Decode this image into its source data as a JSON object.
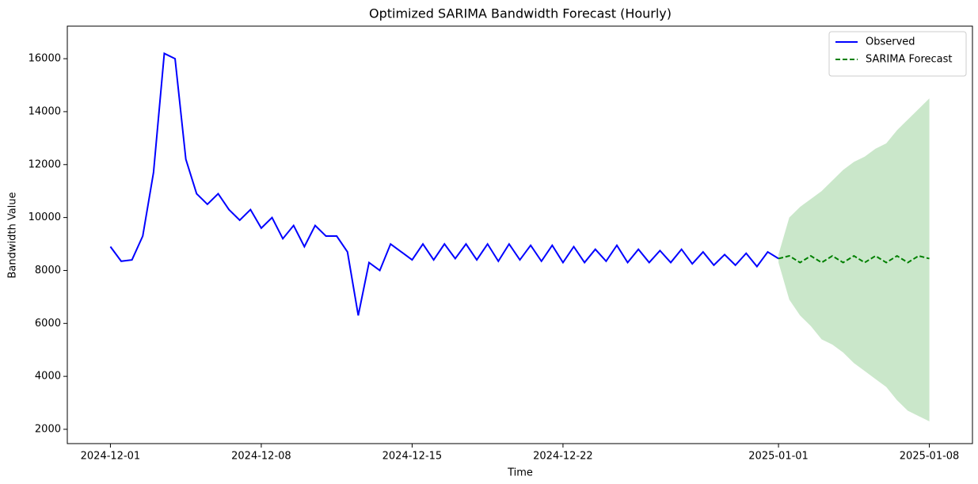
{
  "chart_data": {
    "type": "line",
    "title": "Optimized SARIMA Bandwidth Forecast (Hourly)",
    "x_label": "Time",
    "y_label": "Bandwidth Value",
    "xlim": [
      "2024-11-29 00:00",
      "2025-01-10 00:00"
    ],
    "xticks": [
      "2024-12-01",
      "2024-12-08",
      "2024-12-15",
      "2024-12-22",
      "2025-01-01",
      "2025-01-08"
    ],
    "ylim": [
      1460,
      17230
    ],
    "yticks": [
      2000,
      4000,
      6000,
      8000,
      10000,
      12000,
      14000,
      16000
    ],
    "legend": "upper right",
    "series": [
      {
        "name": "Observed",
        "color": "#0000ff",
        "style": "solid",
        "x": [
          "2024-12-01 00:00",
          "2024-12-01 12:00",
          "2024-12-02 00:00",
          "2024-12-02 12:00",
          "2024-12-03 00:00",
          "2024-12-03 12:00",
          "2024-12-04 00:00",
          "2024-12-04 12:00",
          "2024-12-05 00:00",
          "2024-12-05 12:00",
          "2024-12-06 00:00",
          "2024-12-06 12:00",
          "2024-12-07 00:00",
          "2024-12-07 12:00",
          "2024-12-08 00:00",
          "2024-12-08 12:00",
          "2024-12-09 00:00",
          "2024-12-09 12:00",
          "2024-12-10 00:00",
          "2024-12-10 12:00",
          "2024-12-11 00:00",
          "2024-12-11 12:00",
          "2024-12-12 00:00",
          "2024-12-12 12:00",
          "2024-12-13 00:00",
          "2024-12-13 12:00",
          "2024-12-14 00:00",
          "2024-12-14 12:00",
          "2024-12-15 00:00",
          "2024-12-15 12:00",
          "2024-12-16 00:00",
          "2024-12-16 12:00",
          "2024-12-17 00:00",
          "2024-12-17 12:00",
          "2024-12-18 00:00",
          "2024-12-18 12:00",
          "2024-12-19 00:00",
          "2024-12-19 12:00",
          "2024-12-20 00:00",
          "2024-12-20 12:00",
          "2024-12-21 00:00",
          "2024-12-21 12:00",
          "2024-12-22 00:00",
          "2024-12-22 12:00",
          "2024-12-23 00:00",
          "2024-12-23 12:00",
          "2024-12-24 00:00",
          "2024-12-24 12:00",
          "2024-12-25 00:00",
          "2024-12-25 12:00",
          "2024-12-26 00:00",
          "2024-12-26 12:00",
          "2024-12-27 00:00",
          "2024-12-27 12:00",
          "2024-12-28 00:00",
          "2024-12-28 12:00",
          "2024-12-29 00:00",
          "2024-12-29 12:00",
          "2024-12-30 00:00",
          "2024-12-30 12:00",
          "2024-12-31 00:00",
          "2024-12-31 12:00",
          "2025-01-01 00:00"
        ],
        "values": [
          8900,
          8350,
          8400,
          9300,
          11700,
          16200,
          16000,
          12200,
          10900,
          10500,
          10900,
          10300,
          9900,
          10300,
          9600,
          10000,
          9200,
          9700,
          8900,
          9700,
          9300,
          9300,
          8700,
          6300,
          8300,
          8000,
          9000,
          8700,
          8400,
          9000,
          8400,
          9000,
          8450,
          9000,
          8400,
          9000,
          8350,
          9000,
          8400,
          8950,
          8350,
          8950,
          8300,
          8900,
          8300,
          8800,
          8350,
          8950,
          8300,
          8800,
          8300,
          8750,
          8300,
          8800,
          8250,
          8700,
          8200,
          8600,
          8200,
          8650,
          8150,
          8700,
          8450
        ]
      },
      {
        "name": "SARIMA Forecast",
        "color": "#008000",
        "style": "dashed",
        "band_color": "#2ca02c",
        "x": [
          "2025-01-01 00:00",
          "2025-01-01 12:00",
          "2025-01-02 00:00",
          "2025-01-02 12:00",
          "2025-01-03 00:00",
          "2025-01-03 12:00",
          "2025-01-04 00:00",
          "2025-01-04 12:00",
          "2025-01-05 00:00",
          "2025-01-05 12:00",
          "2025-01-06 00:00",
          "2025-01-06 12:00",
          "2025-01-07 00:00",
          "2025-01-07 12:00",
          "2025-01-08 00:00"
        ],
        "values": [
          8450,
          8550,
          8300,
          8550,
          8300,
          8550,
          8300,
          8550,
          8300,
          8550,
          8300,
          8550,
          8300,
          8550,
          8450
        ],
        "lower": [
          8300,
          6900,
          6300,
          5900,
          5400,
          5200,
          4900,
          4500,
          4200,
          3900,
          3600,
          3100,
          2700,
          2500,
          2300
        ],
        "upper": [
          8600,
          10000,
          10400,
          10700,
          11000,
          11400,
          11800,
          12100,
          12300,
          12600,
          12800,
          13300,
          13700,
          14100,
          14500
        ]
      }
    ]
  }
}
